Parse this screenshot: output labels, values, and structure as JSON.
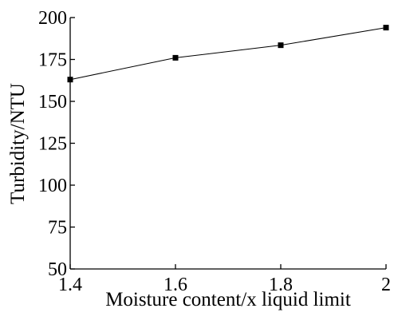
{
  "chart_data": {
    "type": "line",
    "title": "",
    "xlabel": "Moisture content/x liquid limit",
    "ylabel": "Turbidity/NTU",
    "xlim": [
      1.4,
      2.0
    ],
    "ylim": [
      50,
      200
    ],
    "x_ticks": [
      1.4,
      1.6,
      1.8,
      2.0
    ],
    "x_tick_labels": [
      "1.4",
      "1.6",
      "1.8",
      "2"
    ],
    "y_ticks": [
      50,
      75,
      100,
      125,
      150,
      175,
      200
    ],
    "y_tick_labels": [
      "50",
      "75",
      "100",
      "125",
      "150",
      "175",
      "200"
    ],
    "grid": false,
    "legend": "none",
    "series": [
      {
        "marker": "square",
        "color": "#000000",
        "x": [
          1.4,
          1.6,
          1.8,
          2.0
        ],
        "y": [
          163,
          176,
          183.5,
          194
        ]
      }
    ]
  }
}
